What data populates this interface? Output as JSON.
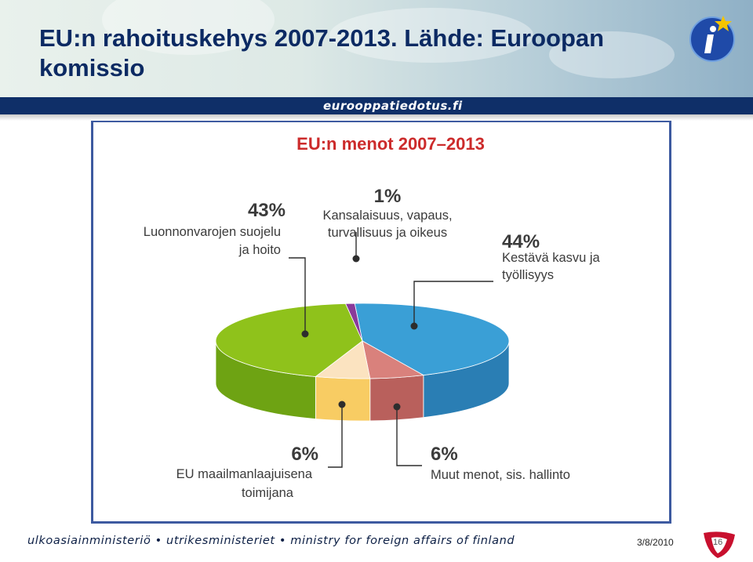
{
  "slide": {
    "title": "EU:n rahoituskehys 2007-2013. Lähde: Euroopan komissio",
    "site": "eurooppatiedotus.fi",
    "footer": "ulkoasiainministeriö • utrikesministeriet • ministry for foreign affairs of finland",
    "date": "3/8/2010",
    "page_number": "16"
  },
  "colors": {
    "header_text": "#0c2a63",
    "band": "#0f2f68",
    "chart_title": "#cc2b2b"
  },
  "chart_data": {
    "type": "pie",
    "title": "EU:n menot 2007–2013",
    "style": "3d-exploded",
    "slices": [
      {
        "label": "Kestävä kasvu ja työllisyys",
        "value": 44,
        "pct_label": "44%",
        "color": "#3a9fd6",
        "side": "#2a7eb4"
      },
      {
        "label": "Muut menot, sis. hallinto",
        "value": 6,
        "pct_label": "6%",
        "color": "#d9817c",
        "side": "#b9605c"
      },
      {
        "label": "EU maailmanlaajuisena toimijana",
        "value": 6,
        "pct_label": "6%",
        "color": "#fbe3c0",
        "side": "#f8cc63"
      },
      {
        "label": "Luonnonvarojen suojelu ja hoito",
        "value": 43,
        "pct_label": "43%",
        "color": "#8fc21b",
        "side": "#6ea313"
      },
      {
        "label": "Kansalaisuus, vapaus, turvallisuus ja oikeus",
        "value": 1,
        "pct_label": "1%",
        "color": "#8a3a9a",
        "side": "#6a2a78"
      }
    ],
    "annotation_labels": {
      "s0": [
        "Kestävä kasvu ja",
        "työllisyys"
      ],
      "s1": [
        "Muut menot, sis. hallinto"
      ],
      "s2": [
        "EU maailmanlaajuisena",
        "toimijana"
      ],
      "s3": [
        "Luonnonvarojen suojelu",
        "ja hoito"
      ],
      "s4": [
        "Kansalaisuus, vapaus,",
        "turvallisuus ja oikeus"
      ]
    }
  }
}
